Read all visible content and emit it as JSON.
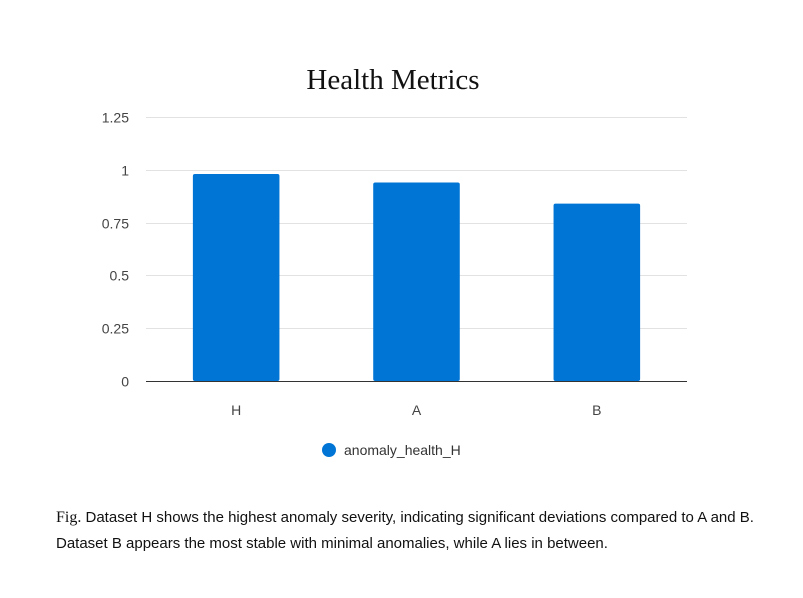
{
  "chart_data": {
    "type": "bar",
    "title": "Health Metrics",
    "categories": [
      "H",
      "A",
      "B"
    ],
    "series": [
      {
        "name": "anomaly_health_H",
        "values": [
          0.98,
          0.94,
          0.84
        ]
      }
    ],
    "ylim": [
      0,
      1.25
    ],
    "yticks": [
      0,
      0.25,
      0.5,
      0.75,
      1,
      1.25
    ],
    "ytick_labels": [
      "0",
      "0.25",
      "0.5",
      "0.75",
      "1",
      "1.25"
    ],
    "grid": true,
    "legend_position": "bottom",
    "bar_color": "#0075d6"
  },
  "caption": {
    "prefix": "Fig.",
    "text": " Dataset H shows the highest anomaly severity, indicating significant deviations compared to A and B. Dataset B appears the most stable with minimal anomalies, while A lies in between."
  }
}
